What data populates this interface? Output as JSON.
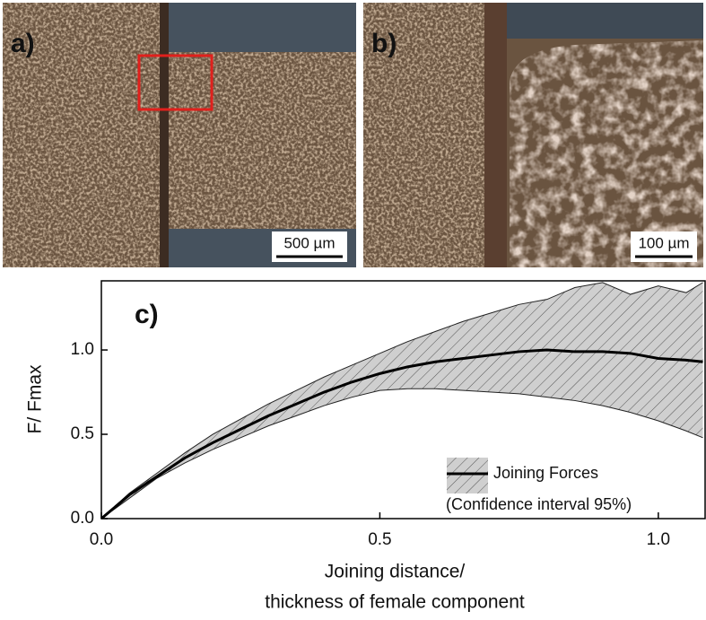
{
  "images": [
    {
      "label": "a)",
      "scale_bar": "500 µm"
    },
    {
      "label": "b)",
      "scale_bar": "100 µm"
    }
  ],
  "chart_data": {
    "type": "line",
    "panel_label": "c)",
    "xlabel": [
      "Joining distance/",
      "thickness of female component"
    ],
    "ylabel": "F/ Fmax",
    "x": [
      0,
      0.05,
      0.1,
      0.15,
      0.2,
      0.25,
      0.3,
      0.35,
      0.4,
      0.45,
      0.5,
      0.55,
      0.6,
      0.65,
      0.7,
      0.75,
      0.8,
      0.85,
      0.9,
      0.95,
      1.0,
      1.05,
      1.08
    ],
    "series": [
      {
        "name": "Joining Forces",
        "color": "#000000",
        "values": [
          0,
          0.14,
          0.25,
          0.36,
          0.45,
          0.53,
          0.61,
          0.68,
          0.75,
          0.81,
          0.86,
          0.9,
          0.93,
          0.95,
          0.97,
          0.99,
          1.0,
          0.99,
          0.99,
          0.98,
          0.95,
          0.94,
          0.93
        ]
      }
    ],
    "band": {
      "name": "(Confidence interval 95%)",
      "color": "#cfcfcf",
      "upper": [
        0,
        0.15,
        0.27,
        0.39,
        0.5,
        0.59,
        0.68,
        0.76,
        0.84,
        0.91,
        0.98,
        1.05,
        1.11,
        1.17,
        1.22,
        1.27,
        1.3,
        1.37,
        1.4,
        1.33,
        1.38,
        1.34,
        1.4
      ],
      "lower": [
        0,
        0.12,
        0.24,
        0.33,
        0.41,
        0.48,
        0.55,
        0.61,
        0.67,
        0.72,
        0.76,
        0.77,
        0.77,
        0.76,
        0.75,
        0.74,
        0.72,
        0.7,
        0.67,
        0.63,
        0.58,
        0.52,
        0.48
      ]
    },
    "xlim": [
      0,
      1.084
    ],
    "ylim": [
      0,
      1.41
    ],
    "xticks": [
      {
        "value": 0,
        "label": "0.0"
      },
      {
        "value": 0.5,
        "label": "0.5"
      },
      {
        "value": 1,
        "label": "1.0"
      }
    ],
    "yticks": [
      {
        "value": 0,
        "label": "0.0"
      },
      {
        "value": 0.5,
        "label": "0.5"
      },
      {
        "value": 1,
        "label": "1.0"
      }
    ]
  }
}
